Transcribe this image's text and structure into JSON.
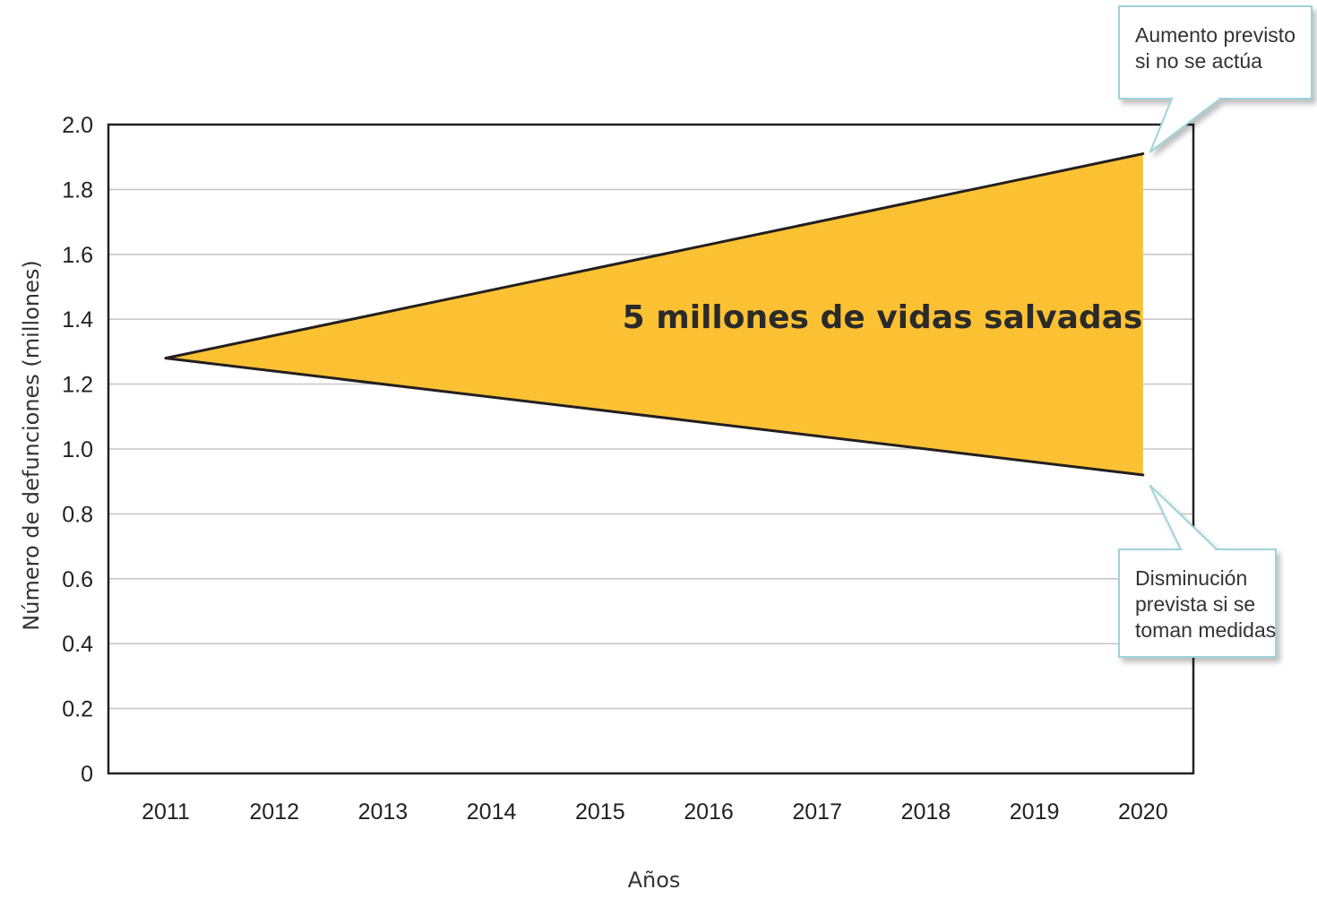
{
  "chart_data": {
    "type": "area",
    "title": "",
    "xlabel": "Años",
    "ylabel": "Número de defunciones (millones)",
    "categories": [
      "2011",
      "2012",
      "2013",
      "2014",
      "2015",
      "2016",
      "2017",
      "2018",
      "2019",
      "2020"
    ],
    "x": [
      2011,
      2020
    ],
    "ylim": [
      0,
      2.0
    ],
    "yticks": [
      "2.0",
      "1.8",
      "1.6",
      "1.4",
      "1.2",
      "1.0",
      "0.8",
      "0.6",
      "0.4",
      "0.2",
      "0"
    ],
    "ytick_values": [
      2.0,
      1.8,
      1.6,
      1.4,
      1.2,
      1.0,
      0.8,
      0.6,
      0.4,
      0.2,
      0
    ],
    "grid": true,
    "series": [
      {
        "values": [
          1.28,
          1.91
        ]
      },
      {
        "values": [
          1.28,
          0.92
        ]
      }
    ],
    "fill_color": "#fcc133",
    "line_color": "#231f20",
    "grid_color": "#c8c8c8",
    "callout_border_color": "#9dd3da",
    "area_label": "5 millones de vidas salvadas",
    "annotations": [
      {
        "lines": [
          "Aumento previsto",
          "si no se actúa"
        ],
        "points_to": {
          "x": 2020,
          "y": 1.91
        }
      },
      {
        "lines": [
          "Disminución",
          "prevista si se",
          "toman medidas"
        ],
        "points_to": {
          "x": 2020,
          "y": 0.92
        }
      }
    ]
  }
}
